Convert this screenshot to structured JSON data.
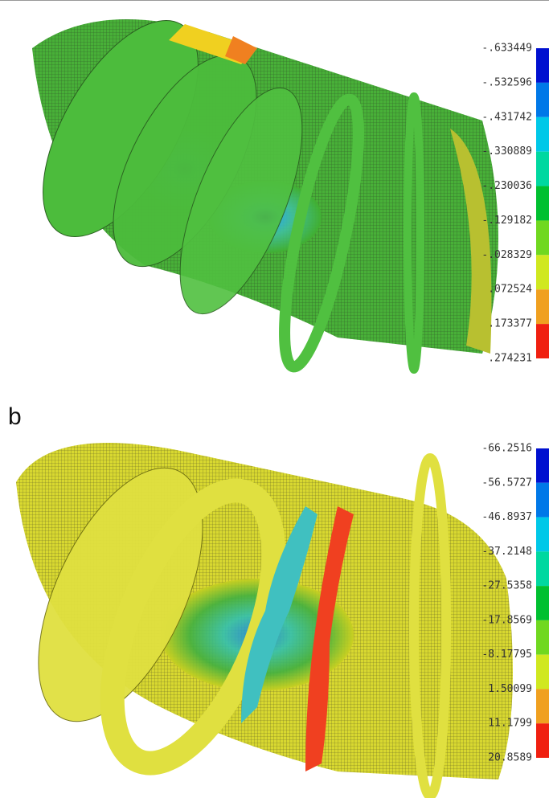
{
  "figure": {
    "panel_b_label": "b",
    "colorbar_a": {
      "labels": [
        "-.633449",
        "-.532596",
        "-.431742",
        "-.330889",
        "-.230036",
        "-.129182",
        "-.028329",
        ".072524",
        ".173377",
        ".274231"
      ]
    },
    "colorbar_b": {
      "labels": [
        "-66.2516",
        "-56.5727",
        "-46.8937",
        "-37.2148",
        "-27.5358",
        "-17.8569",
        "-8.17795",
        "1.50099",
        "11.1799",
        "20.8589"
      ]
    }
  }
}
